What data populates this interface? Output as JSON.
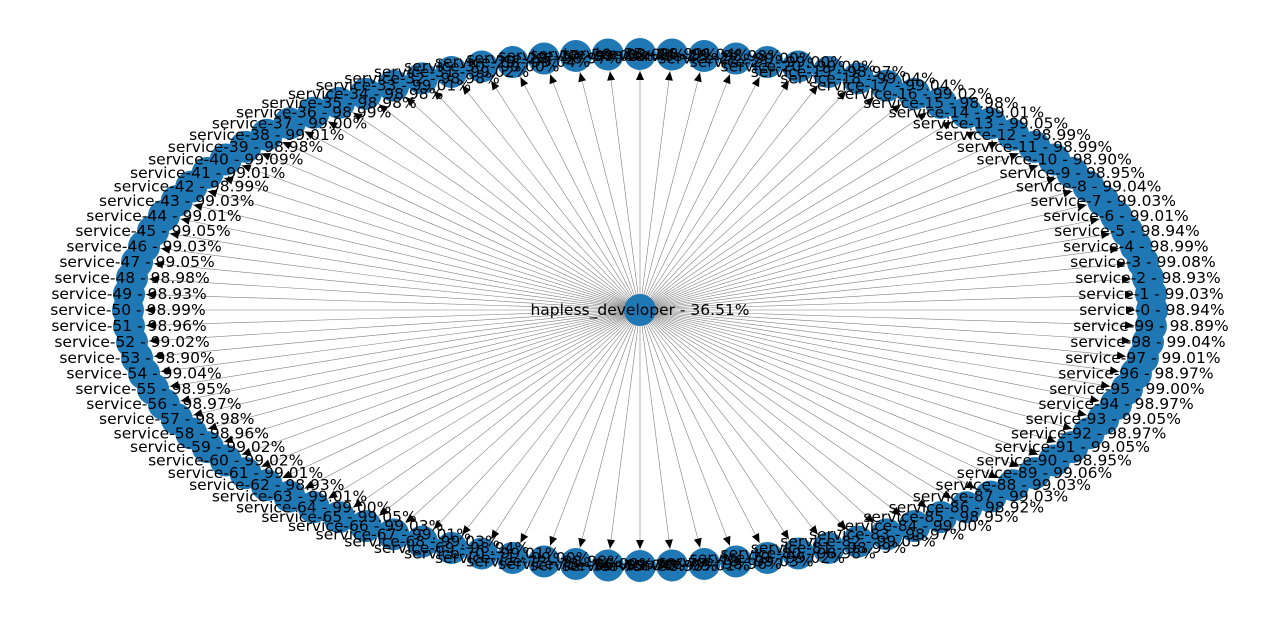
{
  "diagram": {
    "type": "star-graph",
    "node_color": "#1f77b4",
    "edge_color": "#808080",
    "arrow_color": "#000000",
    "label_color": "#000000",
    "center": {
      "label": "hapless_developer - 36.51%"
    },
    "services": [
      {
        "label": "service-0 - 98.94%"
      },
      {
        "label": "service-1 - 99.03%"
      },
      {
        "label": "service-2 - 98.93%"
      },
      {
        "label": "service-3 - 99.08%"
      },
      {
        "label": "service-4 - 98.99%"
      },
      {
        "label": "service-5 - 98.94%"
      },
      {
        "label": "service-6 - 99.01%"
      },
      {
        "label": "service-7 - 99.03%"
      },
      {
        "label": "service-8 - 99.04%"
      },
      {
        "label": "service-9 - 98.95%"
      },
      {
        "label": "service-10 - 98.90%"
      },
      {
        "label": "service-11 - 98.99%"
      },
      {
        "label": "service-12 - 98.99%"
      },
      {
        "label": "service-13 - 99.05%"
      },
      {
        "label": "service-14 - 99.01%"
      },
      {
        "label": "service-15 - 98.98%"
      },
      {
        "label": "service-16 - 99.02%"
      },
      {
        "label": "service-17 - 99.04%"
      },
      {
        "label": "service-18 - 99.04%"
      },
      {
        "label": "service-19 - 98.97%"
      },
      {
        "label": "service-20 - 99.00%"
      },
      {
        "label": "service-21 - 99.00%"
      },
      {
        "label": "service-22 - 99.00%"
      },
      {
        "label": "service-23 - 98.98%"
      },
      {
        "label": "service-24 - 99.04%"
      },
      {
        "label": "service-25 - 98.99%"
      },
      {
        "label": "service-26 - 98.98%"
      },
      {
        "label": "service-27 - 99.03%"
      },
      {
        "label": "service-28 - 98.97%"
      },
      {
        "label": "service-29 - 99.04%"
      },
      {
        "label": "service-30 - 99.00%"
      },
      {
        "label": "service-31 - 99.02%"
      },
      {
        "label": "service-32 - 98.98%"
      },
      {
        "label": "service-33 - 99.01%"
      },
      {
        "label": "service-34 - 98.98%"
      },
      {
        "label": "service-35 - 98.98%"
      },
      {
        "label": "service-36 - 98.99%"
      },
      {
        "label": "service-37 - 99.00%"
      },
      {
        "label": "service-38 - 99.01%"
      },
      {
        "label": "service-39 - 98.98%"
      },
      {
        "label": "service-40 - 99.09%"
      },
      {
        "label": "service-41 - 99.01%"
      },
      {
        "label": "service-42 - 98.99%"
      },
      {
        "label": "service-43 - 99.03%"
      },
      {
        "label": "service-44 - 99.01%"
      },
      {
        "label": "service-45 - 99.05%"
      },
      {
        "label": "service-46 - 99.03%"
      },
      {
        "label": "service-47 - 99.05%"
      },
      {
        "label": "service-48 - 98.98%"
      },
      {
        "label": "service-49 - 98.93%"
      },
      {
        "label": "service-50 - 98.99%"
      },
      {
        "label": "service-51 - 98.96%"
      },
      {
        "label": "service-52 - 99.02%"
      },
      {
        "label": "service-53 - 98.90%"
      },
      {
        "label": "service-54 - 99.04%"
      },
      {
        "label": "service-55 - 98.95%"
      },
      {
        "label": "service-56 - 98.97%"
      },
      {
        "label": "service-57 - 98.98%"
      },
      {
        "label": "service-58 - 98.96%"
      },
      {
        "label": "service-59 - 99.02%"
      },
      {
        "label": "service-60 - 99.02%"
      },
      {
        "label": "service-61 - 99.01%"
      },
      {
        "label": "service-62 - 98.93%"
      },
      {
        "label": "service-63 - 99.01%"
      },
      {
        "label": "service-64 - 99.00%"
      },
      {
        "label": "service-65 - 99.05%"
      },
      {
        "label": "service-66 - 99.03%"
      },
      {
        "label": "service-67 - 99.01%"
      },
      {
        "label": "service-68 - 99.03%"
      },
      {
        "label": "service-69 - 98.94%"
      },
      {
        "label": "service-70 - 99.01%"
      },
      {
        "label": "service-71 - 99.00%"
      },
      {
        "label": "service-72 - 98.98%"
      },
      {
        "label": "service-73 - 98.99%"
      },
      {
        "label": "service-74 - 99.04%"
      },
      {
        "label": "service-75 - 98.98%"
      },
      {
        "label": "service-76 - 99.01%"
      },
      {
        "label": "service-77 - 98.96%"
      },
      {
        "label": "service-78 - 99.03%"
      },
      {
        "label": "service-79 - 99.02%"
      },
      {
        "label": "service-80 - 98.98%"
      },
      {
        "label": "service-81 - 98.99%"
      },
      {
        "label": "service-82 - 99.05%"
      },
      {
        "label": "service-83 - 98.97%"
      },
      {
        "label": "service-84 - 99.00%"
      },
      {
        "label": "service-85 - 98.95%"
      },
      {
        "label": "service-86 - 98.92%"
      },
      {
        "label": "service-87 - 99.03%"
      },
      {
        "label": "service-88 - 99.03%"
      },
      {
        "label": "service-89 - 99.06%"
      },
      {
        "label": "service-90 - 98.95%"
      },
      {
        "label": "service-91 - 99.05%"
      },
      {
        "label": "service-92 - 98.97%"
      },
      {
        "label": "service-93 - 99.05%"
      },
      {
        "label": "service-94 - 98.97%"
      },
      {
        "label": "service-95 - 99.00%"
      },
      {
        "label": "service-96 - 98.97%"
      },
      {
        "label": "service-97 - 99.01%"
      },
      {
        "label": "service-98 - 99.04%"
      },
      {
        "label": "service-99 - 98.89%"
      }
    ]
  }
}
